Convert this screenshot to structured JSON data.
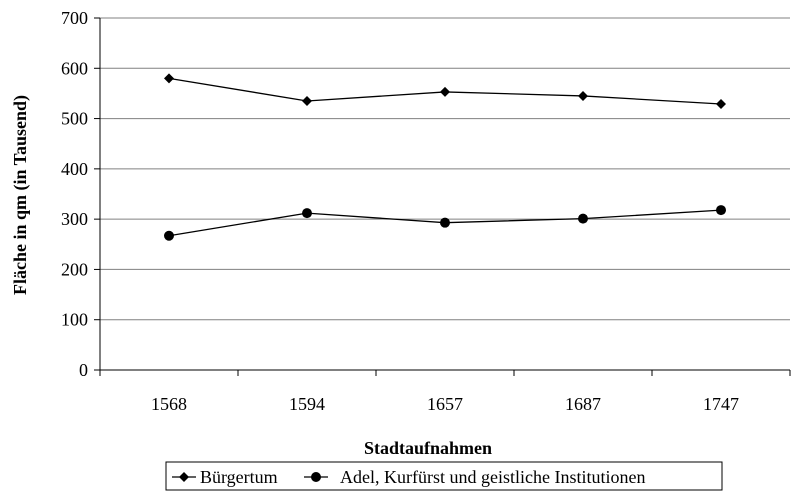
{
  "chart_data": {
    "type": "line",
    "categories": [
      "1568",
      "1594",
      "1657",
      "1687",
      "1747"
    ],
    "series": [
      {
        "name": "Bürgertum",
        "values": [
          580,
          535,
          553,
          545,
          529
        ],
        "marker": "diamond",
        "color": "#000000"
      },
      {
        "name": "Adel, Kurfürst und geistliche Institutionen",
        "values": [
          267,
          312,
          293,
          301,
          318
        ],
        "marker": "circle",
        "color": "#000000"
      }
    ],
    "xlabel": "Stadtaufnahmen",
    "ylabel": "Fläche in qm (in Tausend)",
    "ylim": [
      0,
      700
    ],
    "yticks": [
      0,
      100,
      200,
      300,
      400,
      500,
      600,
      700
    ],
    "grid": true,
    "legend_position": "bottom"
  }
}
